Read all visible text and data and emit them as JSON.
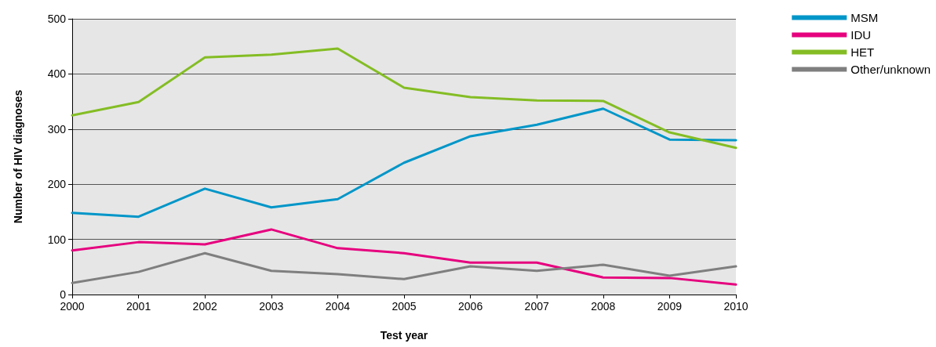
{
  "chart_data": {
    "type": "line",
    "xlabel": "Test year",
    "ylabel": "Number of HIV diagnoses",
    "x": [
      2000,
      2001,
      2002,
      2003,
      2004,
      2005,
      2006,
      2007,
      2008,
      2009,
      2010
    ],
    "series": [
      {
        "name": "MSM",
        "color": "#0096c8",
        "values": [
          148,
          141,
          192,
          158,
          173,
          239,
          287,
          308,
          337,
          281,
          280
        ]
      },
      {
        "name": "IDU",
        "color": "#e6007e",
        "values": [
          80,
          95,
          91,
          118,
          84,
          75,
          58,
          58,
          31,
          30,
          18
        ]
      },
      {
        "name": "HET",
        "color": "#84bd24",
        "values": [
          325,
          349,
          430,
          435,
          446,
          375,
          358,
          352,
          351,
          294,
          266
        ]
      },
      {
        "name": "Other/unknown",
        "color": "#7f7f7f",
        "values": [
          21,
          41,
          75,
          43,
          37,
          28,
          51,
          43,
          54,
          34,
          51
        ]
      }
    ],
    "xlim": [
      2000,
      2010
    ],
    "xticks": [
      2000,
      2001,
      2002,
      2003,
      2004,
      2005,
      2006,
      2007,
      2008,
      2009,
      2010
    ],
    "ylim": [
      0,
      500
    ],
    "yticks": [
      0,
      100,
      200,
      300,
      400,
      500
    ],
    "grid": "y",
    "legend": "top right",
    "marker": "none",
    "line_style": "solid"
  }
}
